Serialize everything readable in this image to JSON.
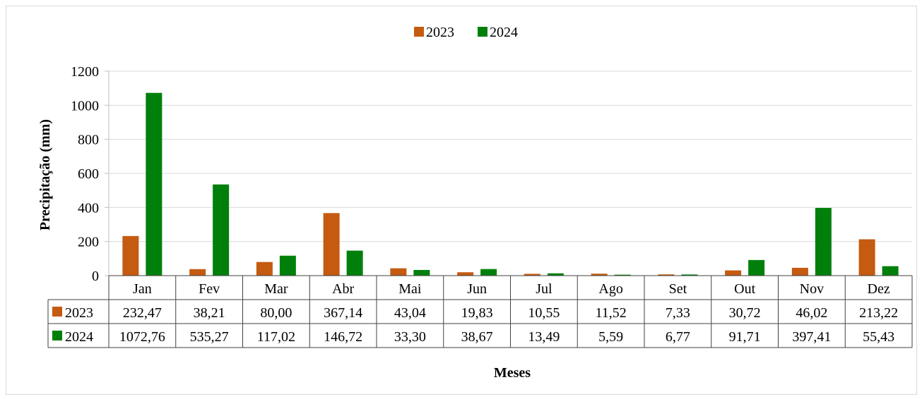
{
  "chart_data": {
    "type": "bar",
    "categories": [
      "Jan",
      "Fev",
      "Mar",
      "Abr",
      "Mai",
      "Jun",
      "Jul",
      "Ago",
      "Set",
      "Out",
      "Nov",
      "Dez"
    ],
    "series": [
      {
        "name": "2023",
        "color": "#c55a11",
        "values": [
          232.47,
          38.21,
          80.0,
          367.14,
          43.04,
          19.83,
          10.55,
          11.52,
          7.33,
          30.72,
          46.02,
          213.22
        ],
        "labels": [
          "232,47",
          "38,21",
          "80,00",
          "367,14",
          "43,04",
          "19,83",
          "10,55",
          "11,52",
          "7,33",
          "30,72",
          "46,02",
          "213,22"
        ]
      },
      {
        "name": "2024",
        "color": "#00800b",
        "values": [
          1072.76,
          535.27,
          117.02,
          146.72,
          33.3,
          38.67,
          13.49,
          5.59,
          6.77,
          91.71,
          397.41,
          55.43
        ],
        "labels": [
          "1072,76",
          "535,27",
          "117,02",
          "146,72",
          "33,30",
          "38,67",
          "13,49",
          "5,59",
          "6,77",
          "91,71",
          "397,41",
          "55,43"
        ]
      }
    ],
    "title": "",
    "xlabel": "Meses",
    "ylabel": "Precipitação (mm)",
    "ylim": [
      0,
      1200
    ],
    "yticks": [
      "0",
      "200",
      "400",
      "600",
      "800",
      "1000",
      "1200"
    ],
    "grid": true,
    "legend_position": "top-center",
    "data_table": true
  }
}
